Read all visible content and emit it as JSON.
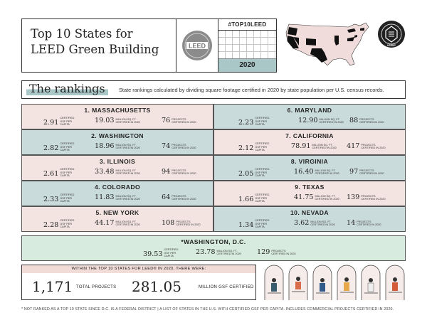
{
  "header": {
    "title_line1": "Top 10 States for",
    "title_line2": "LEED Green Building",
    "hashtag": "#TOP10LEED",
    "year": "2020",
    "logo_text": "LEED",
    "seal_text": "USGBC"
  },
  "rankings": {
    "heading": "The rankings",
    "subtitle": "State rankings calculated by dividing square footage certified in 2020 by state population per U.S. census records.",
    "label_gsf": "CERTIFIED GSF PER CAPITA",
    "label_sqft": "MILLION SQ. FT. CERTIFIED IN 2020",
    "label_projects": "PROJECTS CERTIFIED IN 2020",
    "states": [
      {
        "name": "1. MASSACHUSETTS",
        "gsf": "2.91",
        "sqft": "19.03",
        "projects": "76"
      },
      {
        "name": "2. WASHINGTON",
        "gsf": "2.82",
        "sqft": "18.96",
        "projects": "74"
      },
      {
        "name": "3. ILLINOIS",
        "gsf": "2.61",
        "sqft": "33.48",
        "projects": "94"
      },
      {
        "name": "4. COLORADO",
        "gsf": "2.33",
        "sqft": "11.83",
        "projects": "64"
      },
      {
        "name": "5. NEW YORK",
        "gsf": "2.28",
        "sqft": "44.17",
        "projects": "108"
      },
      {
        "name": "6. MARYLAND",
        "gsf": "2.23",
        "sqft": "12.90",
        "projects": "88"
      },
      {
        "name": "7. CALIFORNIA",
        "gsf": "2.12",
        "sqft": "78.91",
        "projects": "417"
      },
      {
        "name": "8. VIRGINIA",
        "gsf": "2.05",
        "sqft": "16.40",
        "projects": "97"
      },
      {
        "name": "9. TEXAS",
        "gsf": "1.66",
        "sqft": "41.75",
        "projects": "139"
      },
      {
        "name": "10. NEVADA",
        "gsf": "1.34",
        "sqft": "3.62",
        "projects": "14"
      }
    ],
    "dc": {
      "name": "*WASHINGTON, D.C.",
      "gsf": "39.53",
      "sqft": "23.78",
      "projects": "129"
    }
  },
  "totals": {
    "heading": "WITHIN THE TOP 10 STATES FOR LEED® IN 2020, THERE WERE:",
    "projects_value": "1,171",
    "projects_label": "TOTAL PROJECTS",
    "gsf_value": "281.05",
    "gsf_label": "MILLION GSF CERTIFIED"
  },
  "footnote": "* NOT RANKED AS A TOP 10 STATE SINCE D.C. IS A FEDERAL DISTRICT | A LIST OF STATES IN THE U.S. WITH CERTIFIED GSF PER CAPITA. INCLUDES COMMERCIAL PROJECTS CERTIFIED IN 2020.",
  "colors": {
    "pink": "#f3e4e1",
    "teal": "#cadbdb",
    "green": "#d8ebdf",
    "map_highlight": "#111111",
    "map_base": "#f0dcda"
  }
}
